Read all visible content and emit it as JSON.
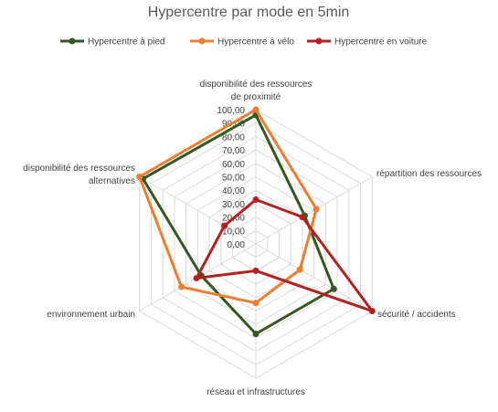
{
  "chart_data": {
    "type": "radar",
    "title": "Hypercentre par mode en 5min",
    "categories": [
      [
        "disponibilité des ressources",
        "de proximité"
      ],
      [
        "répartition des ressources"
      ],
      [
        "sécurité / accidents"
      ],
      [
        "réseau et infrastructures"
      ],
      [
        "environnement urbain"
      ],
      [
        "disponibilité des ressources",
        "alternatives"
      ]
    ],
    "ticks": [
      "0,00",
      "10,00",
      "20,00",
      "30,00",
      "40,00",
      "50,00",
      "60,00",
      "70,00",
      "80,00",
      "90,00",
      "100,00"
    ],
    "rlim": [
      0,
      100
    ],
    "grid": true,
    "legend_position": "top",
    "series": [
      {
        "name": "Hypercentre à pied",
        "color": "#375623",
        "values": [
          96,
          42,
          67,
          67,
          47,
          97
        ]
      },
      {
        "name": "Hypercentre à vélo",
        "color": "#ED7D31",
        "values": [
          100,
          52,
          38,
          44,
          64,
          100
        ]
      },
      {
        "name": "Hypercentre en voiture",
        "color": "#B22222",
        "values": [
          33,
          40,
          100,
          20,
          51,
          27
        ]
      }
    ]
  }
}
